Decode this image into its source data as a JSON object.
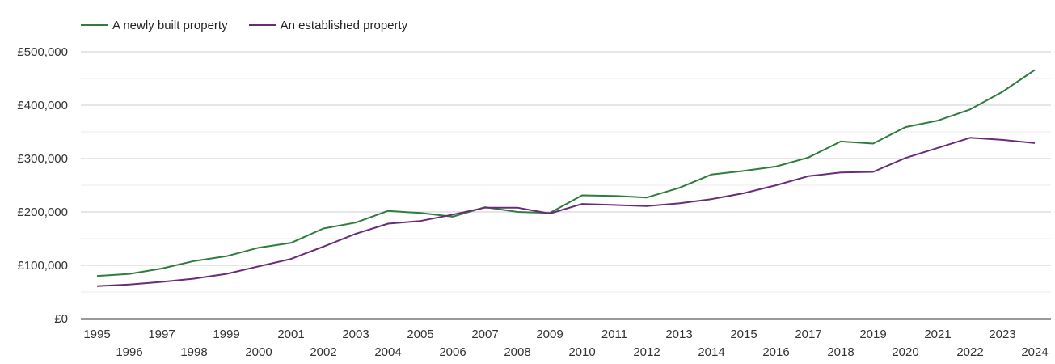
{
  "colors": {
    "new": "#2e7d3c",
    "established": "#6a2c7a",
    "grid": "#cccccc",
    "minor_grid": "#ebebeb",
    "axis": "#333333"
  },
  "chart_data": {
    "type": "line",
    "title": "",
    "xlabel": "",
    "ylabel": "",
    "legend_position": "top-left",
    "grid": true,
    "ylim": [
      0,
      500000
    ],
    "ytick_labels": [
      "£0",
      "£100,000",
      "£200,000",
      "£300,000",
      "£400,000",
      "£500,000"
    ],
    "x": [
      "1995",
      "1996",
      "1997",
      "1998",
      "1999",
      "2000",
      "2001",
      "2002",
      "2003",
      "2004",
      "2005",
      "2006",
      "2007",
      "2008",
      "2009",
      "2010",
      "2011",
      "2012",
      "2013",
      "2014",
      "2015",
      "2016",
      "2017",
      "2018",
      "2019",
      "2020",
      "2021",
      "2022",
      "2023",
      "2024"
    ],
    "series": [
      {
        "name": "A newly built property",
        "color": "#2e7d3c",
        "values": [
          80000,
          84000,
          94000,
          108000,
          117000,
          133000,
          142000,
          169000,
          180000,
          202000,
          198000,
          191000,
          209000,
          200000,
          198000,
          231000,
          230000,
          227000,
          245000,
          270000,
          277000,
          285000,
          302000,
          332000,
          328000,
          359000,
          371000,
          392000,
          425000,
          466000
        ]
      },
      {
        "name": "An established property",
        "color": "#6a2c7a",
        "values": [
          61000,
          64000,
          69000,
          75000,
          84000,
          98000,
          112000,
          135000,
          159000,
          178000,
          183000,
          195000,
          208000,
          208000,
          197000,
          215000,
          213000,
          211000,
          216000,
          224000,
          235000,
          250000,
          267000,
          274000,
          275000,
          301000,
          320000,
          339000,
          335000,
          329000
        ]
      }
    ]
  }
}
